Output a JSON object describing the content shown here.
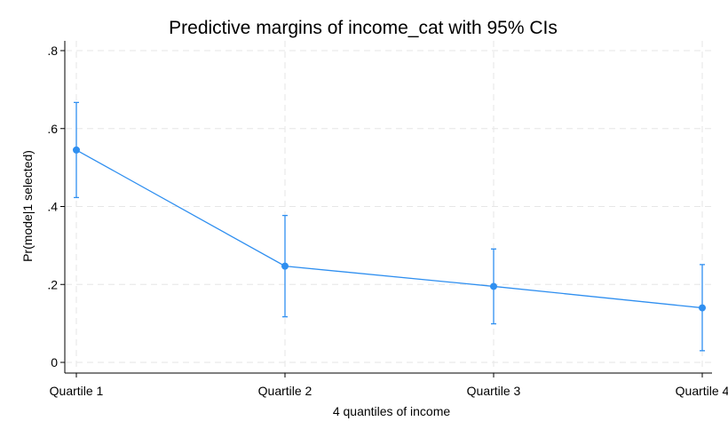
{
  "chart_data": {
    "type": "line",
    "title": "Predictive margins of income_cat with 95% CIs",
    "xlabel": "4 quantiles of income",
    "ylabel": "Pr(mode|1 selected)",
    "categories": [
      "Quartile 1",
      "Quartile 2",
      "Quartile 3",
      "Quartile 4"
    ],
    "series": [
      {
        "values": [
          0.545,
          0.247,
          0.195,
          0.14
        ],
        "ci_lower": [
          0.423,
          0.117,
          0.099,
          0.03
        ],
        "ci_upper": [
          0.667,
          0.377,
          0.291,
          0.251
        ]
      }
    ],
    "ylim": [
      0,
      0.8
    ],
    "yticks": [
      0,
      0.2,
      0.4,
      0.6,
      0.8
    ],
    "ytick_labels": [
      "0",
      ".2",
      ".4",
      ".6",
      ".8"
    ],
    "grid": true,
    "colors": {
      "series": "#2f8ff0",
      "grid": "#e6e6e6",
      "axis": "#000000"
    }
  }
}
